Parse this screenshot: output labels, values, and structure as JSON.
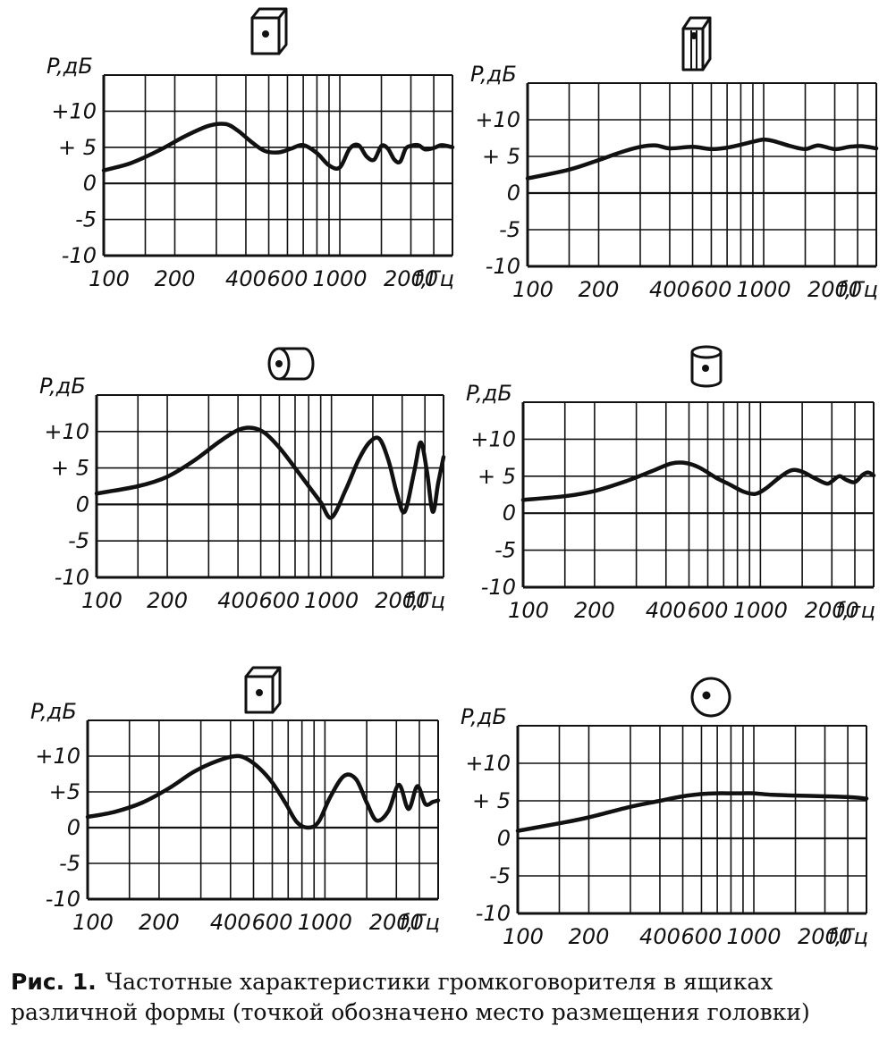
{
  "chart_data": [
    {
      "type": "line",
      "box_icon": "cube-icon-dot-front",
      "ylabel": "P,дБ",
      "xlabel": "f,Гц",
      "y_ticks": [
        "+10",
        "+ 5",
        "0",
        "-5",
        "-10"
      ],
      "x_ticks": [
        "100",
        "200",
        "400",
        "600",
        "1000",
        "2000"
      ],
      "ylim": [
        -10,
        15
      ],
      "xlim": [
        100,
        3000
      ],
      "x_scale": "log",
      "grid": true,
      "series": [
        {
          "x": [
            100,
            130,
            170,
            220,
            280,
            330,
            370,
            420,
            480,
            550,
            620,
            700,
            800,
            900,
            1000,
            1100,
            1200,
            1300,
            1400,
            1500,
            1600,
            1700,
            1800,
            1900,
            2000,
            2150,
            2300,
            2500,
            2700,
            3000
          ],
          "y": [
            1.8,
            2.8,
            4.5,
            6.5,
            8.0,
            8.2,
            7.3,
            5.8,
            4.5,
            4.3,
            4.8,
            5.3,
            4.2,
            2.5,
            2.2,
            4.8,
            5.3,
            3.7,
            3.3,
            5.2,
            4.8,
            3.3,
            3.0,
            4.8,
            5.2,
            5.3,
            4.7,
            4.9,
            5.3,
            5.0
          ]
        }
      ]
    },
    {
      "type": "line",
      "box_icon": "tall-box-icon",
      "ylabel": "P,дБ",
      "xlabel": "f,Гц",
      "y_ticks": [
        "+10",
        "+ 5",
        "0",
        "-5",
        "-10"
      ],
      "x_ticks": [
        "100",
        "200",
        "400",
        "600",
        "1000",
        "2000"
      ],
      "ylim": [
        -10,
        15
      ],
      "xlim": [
        100,
        3000
      ],
      "x_scale": "log",
      "grid": true,
      "series": [
        {
          "x": [
            100,
            150,
            200,
            250,
            300,
            350,
            400,
            500,
            600,
            700,
            800,
            900,
            1000,
            1100,
            1300,
            1500,
            1700,
            2000,
            2300,
            2600,
            3000
          ],
          "y": [
            2.0,
            3.2,
            4.5,
            5.6,
            6.3,
            6.5,
            6.1,
            6.3,
            6.0,
            6.2,
            6.6,
            7.0,
            7.3,
            7.1,
            6.4,
            6.0,
            6.5,
            6.0,
            6.3,
            6.4,
            6.1
          ]
        }
      ]
    },
    {
      "type": "line",
      "box_icon": "horizontal-cylinder-icon",
      "ylabel": "P,дБ",
      "xlabel": "f,Гц",
      "y_ticks": [
        "+10",
        "+ 5",
        "0",
        "-5",
        "-10"
      ],
      "x_ticks": [
        "100",
        "200",
        "400",
        "600",
        "1000",
        "2000"
      ],
      "ylim": [
        -10,
        15
      ],
      "xlim": [
        100,
        3000
      ],
      "x_scale": "log",
      "grid": true,
      "series": [
        {
          "x": [
            100,
            150,
            200,
            260,
            330,
            400,
            460,
            520,
            600,
            700,
            800,
            900,
            1000,
            1150,
            1300,
            1450,
            1600,
            1750,
            1900,
            2050,
            2250,
            2400,
            2550,
            2700,
            2850,
            3000
          ],
          "y": [
            1.5,
            2.5,
            3.8,
            6.0,
            8.5,
            10.2,
            10.5,
            9.8,
            7.8,
            5.0,
            2.5,
            0.3,
            -1.8,
            2.0,
            6.0,
            8.5,
            9.0,
            6.0,
            1.5,
            -1.0,
            4.5,
            8.5,
            4.5,
            -1.0,
            3.0,
            6.5
          ]
        }
      ]
    },
    {
      "type": "line",
      "box_icon": "vertical-cylinder-icon",
      "ylabel": "P,дБ",
      "xlabel": "f,гц",
      "y_ticks": [
        "+10",
        "+ 5",
        "0",
        "-5",
        "-10"
      ],
      "x_ticks": [
        "100",
        "200",
        "400",
        "600",
        "1000",
        "2000"
      ],
      "ylim": [
        -10,
        15
      ],
      "xlim": [
        100,
        3000
      ],
      "x_scale": "log",
      "grid": true,
      "series": [
        {
          "x": [
            100,
            150,
            200,
            270,
            350,
            420,
            480,
            550,
            650,
            750,
            850,
            950,
            1050,
            1200,
            1350,
            1500,
            1700,
            1900,
            2000,
            2150,
            2300,
            2500,
            2700,
            2850,
            3000
          ],
          "y": [
            1.8,
            2.3,
            3.0,
            4.3,
            5.7,
            6.7,
            6.8,
            6.2,
            4.8,
            3.8,
            2.9,
            2.6,
            3.3,
            4.8,
            5.8,
            5.6,
            4.7,
            4.0,
            4.3,
            5.0,
            4.5,
            4.2,
            5.2,
            5.5,
            5.1
          ]
        }
      ]
    },
    {
      "type": "line",
      "box_icon": "cube-icon-dot-front",
      "ylabel": "P,дБ",
      "xlabel": "f,Гц",
      "y_ticks": [
        "+10",
        "+5",
        "0",
        "-5",
        "-10"
      ],
      "x_ticks": [
        "100",
        "200",
        "400",
        "600",
        "1000",
        "2000"
      ],
      "ylim": [
        -10,
        15
      ],
      "xlim": [
        100,
        3000
      ],
      "x_scale": "log",
      "grid": true,
      "series": [
        {
          "x": [
            100,
            130,
            170,
            220,
            280,
            350,
            420,
            470,
            530,
            600,
            680,
            760,
            850,
            940,
            1050,
            1200,
            1350,
            1500,
            1650,
            1850,
            2050,
            2250,
            2450,
            2650,
            2850,
            3000
          ],
          "y": [
            1.5,
            2.2,
            3.5,
            5.5,
            7.8,
            9.3,
            10.0,
            9.6,
            8.3,
            6.3,
            3.5,
            0.8,
            0.0,
            0.8,
            4.2,
            7.2,
            6.8,
            3.5,
            1.0,
            2.3,
            6.0,
            2.6,
            5.8,
            3.3,
            3.6,
            3.8
          ]
        }
      ]
    },
    {
      "type": "line",
      "box_icon": "sphere-icon",
      "ylabel": "P,дБ",
      "xlabel": "f,Гц",
      "y_ticks": [
        "+10",
        "+ 5",
        "0",
        "-5",
        "-10"
      ],
      "x_ticks": [
        "100",
        "200",
        "400",
        "600",
        "1000",
        "2000"
      ],
      "ylim": [
        -10,
        15
      ],
      "xlim": [
        100,
        3000
      ],
      "x_scale": "log",
      "grid": true,
      "series": [
        {
          "x": [
            100,
            150,
            200,
            300,
            400,
            500,
            600,
            700,
            800,
            900,
            1000,
            1200,
            1500,
            2000,
            2500,
            3000
          ],
          "y": [
            1.0,
            2.0,
            2.8,
            4.2,
            5.0,
            5.6,
            5.9,
            6.0,
            6.0,
            6.0,
            6.0,
            5.8,
            5.7,
            5.6,
            5.5,
            5.3
          ]
        }
      ]
    }
  ],
  "caption": {
    "lead": "Рис. 1.",
    "line1": "Частотные характеристики громкоговорителя в ящиках",
    "line2": "различной формы (точкой обозначено место размещения головки)"
  }
}
